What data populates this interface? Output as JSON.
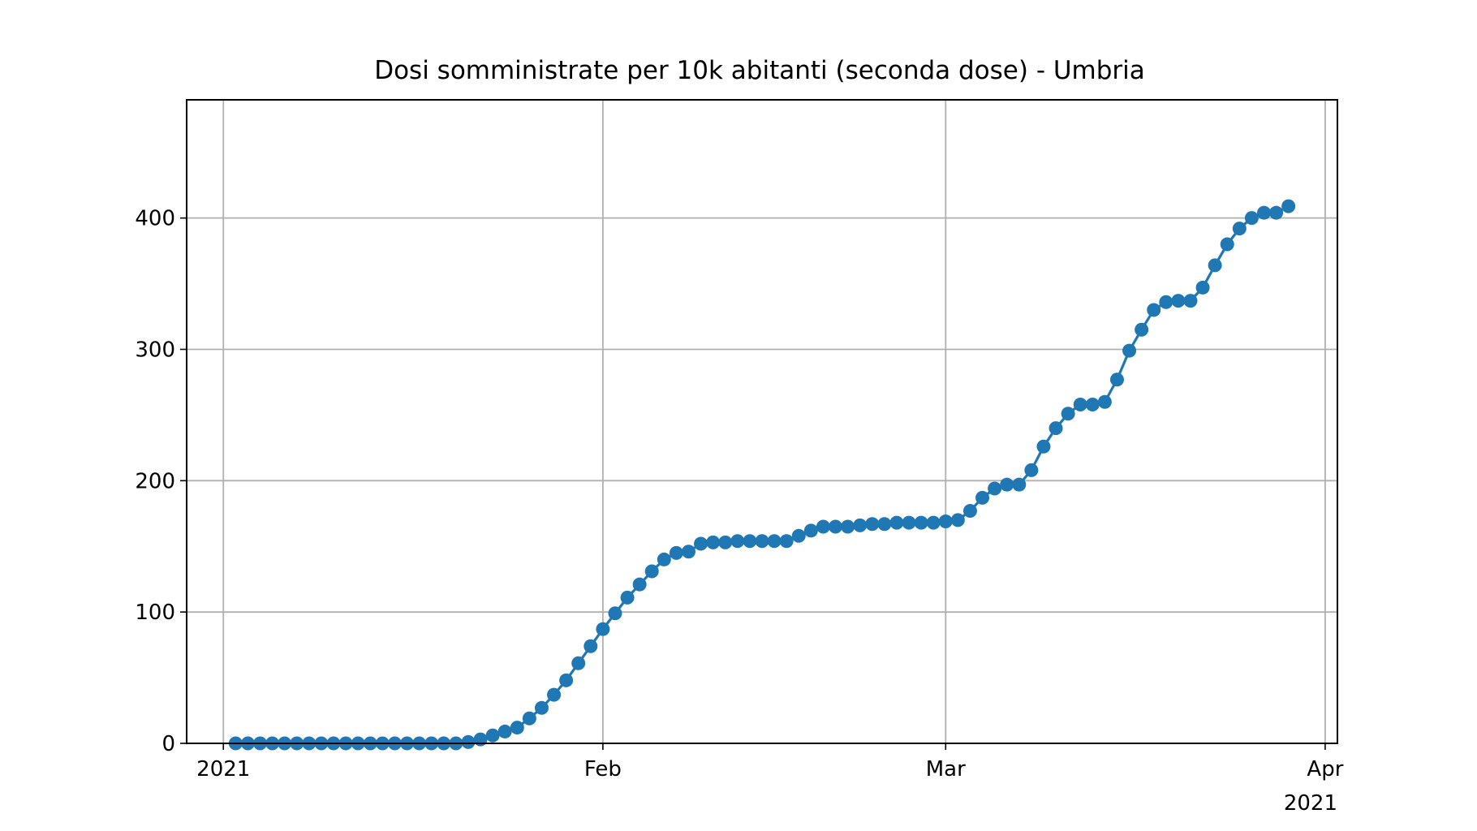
{
  "chart_data": {
    "type": "line",
    "title": "Dosi somministrate per 10k abitanti (seconda dose) - Umbria",
    "xlabel": "",
    "ylabel": "",
    "x_axis": {
      "type": "date",
      "range": [
        "2020-12-29",
        "2021-04-02"
      ],
      "ticks": [
        {
          "date": "2021-01-01",
          "label": "2021"
        },
        {
          "date": "2021-02-01",
          "label": "Feb"
        },
        {
          "date": "2021-03-01",
          "label": "Mar"
        },
        {
          "date": "2021-04-01",
          "label": "Apr"
        }
      ],
      "offset_label": "2021"
    },
    "y_axis": {
      "range": [
        0,
        490
      ],
      "ticks": [
        0,
        100,
        200,
        300,
        400
      ]
    },
    "grid": true,
    "marker": "circle",
    "color": "#1f77b4",
    "series": [
      {
        "name": "",
        "x": [
          "2021-01-02",
          "2021-01-03",
          "2021-01-04",
          "2021-01-05",
          "2021-01-06",
          "2021-01-07",
          "2021-01-08",
          "2021-01-09",
          "2021-01-10",
          "2021-01-11",
          "2021-01-12",
          "2021-01-13",
          "2021-01-14",
          "2021-01-15",
          "2021-01-16",
          "2021-01-17",
          "2021-01-18",
          "2021-01-19",
          "2021-01-20",
          "2021-01-21",
          "2021-01-22",
          "2021-01-23",
          "2021-01-24",
          "2021-01-25",
          "2021-01-26",
          "2021-01-27",
          "2021-01-28",
          "2021-01-29",
          "2021-01-30",
          "2021-01-31",
          "2021-02-01",
          "2021-02-02",
          "2021-02-03",
          "2021-02-04",
          "2021-02-05",
          "2021-02-06",
          "2021-02-07",
          "2021-02-08",
          "2021-02-09",
          "2021-02-10",
          "2021-02-11",
          "2021-02-12",
          "2021-02-13",
          "2021-02-14",
          "2021-02-15",
          "2021-02-16",
          "2021-02-17",
          "2021-02-18",
          "2021-02-19",
          "2021-02-20",
          "2021-02-21",
          "2021-02-22",
          "2021-02-23",
          "2021-02-24",
          "2021-02-25",
          "2021-02-26",
          "2021-02-27",
          "2021-02-28",
          "2021-03-01",
          "2021-03-02",
          "2021-03-03",
          "2021-03-04",
          "2021-03-05",
          "2021-03-06",
          "2021-03-07",
          "2021-03-08",
          "2021-03-09",
          "2021-03-10",
          "2021-03-11",
          "2021-03-12",
          "2021-03-13",
          "2021-03-14",
          "2021-03-15",
          "2021-03-16",
          "2021-03-17",
          "2021-03-18",
          "2021-03-19",
          "2021-03-20",
          "2021-03-21",
          "2021-03-22",
          "2021-03-23",
          "2021-03-24",
          "2021-03-25",
          "2021-03-26",
          "2021-03-27",
          "2021-03-28",
          "2021-03-29"
        ],
        "y": [
          0,
          0,
          0,
          0,
          0,
          0,
          0,
          0,
          0,
          0,
          0,
          0,
          0,
          0,
          0,
          0,
          0,
          0,
          0,
          1,
          3,
          6,
          9,
          12,
          19,
          27,
          37,
          48,
          61,
          74,
          87,
          99,
          111,
          121,
          131,
          140,
          145,
          146,
          152,
          153,
          153,
          154,
          154,
          154,
          154,
          154,
          158,
          162,
          165,
          165,
          165,
          166,
          167,
          167,
          168,
          168,
          168,
          168,
          169,
          170,
          177,
          187,
          194,
          197,
          197,
          208,
          226,
          240,
          251,
          258,
          258,
          260,
          277,
          299,
          315,
          330,
          336,
          337,
          337,
          347,
          364,
          380,
          392,
          400,
          404,
          404,
          409
        ]
      }
    ]
  }
}
